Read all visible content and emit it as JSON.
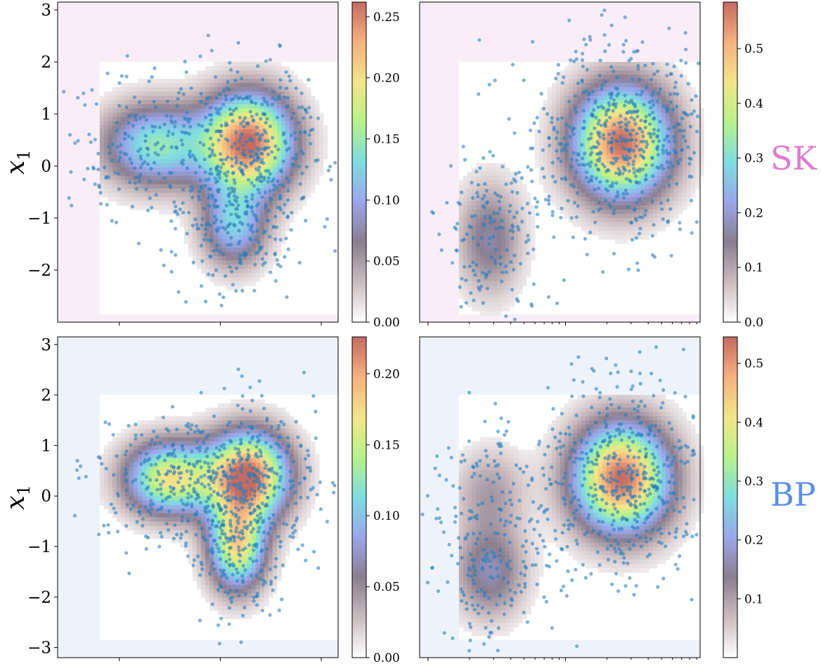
{
  "chart_data": [
    {
      "type": "scatter",
      "description_of_layer": "density heatmap with sample scatter overlay",
      "row_label": "SK",
      "ylabel": "x_1",
      "ylim": [
        -3,
        3.15
      ],
      "yticks": [
        -2,
        -1,
        0,
        1,
        2,
        3
      ],
      "ytick_labels": [
        "−2",
        "−1",
        "0",
        "1",
        "2",
        "3"
      ],
      "background_color": "#f9eef8",
      "colorbar": {
        "min": 0.0,
        "max": 0.262,
        "ticks": [
          0.0,
          0.05,
          0.1,
          0.15,
          0.2,
          0.25
        ],
        "tick_labels": [
          "0.00",
          "0.05",
          "0.10",
          "0.15",
          "0.20",
          "0.25"
        ]
      },
      "modes": [
        {
          "x": 0.68,
          "y": 0.45,
          "sx": 0.11,
          "sy": 0.65,
          "w": 1.0
        },
        {
          "x": 0.35,
          "y": 0.4,
          "sx": 0.13,
          "sy": 0.55,
          "w": 0.55
        },
        {
          "x": 0.63,
          "y": -1.15,
          "sx": 0.08,
          "sy": 0.55,
          "w": 0.45
        }
      ]
    },
    {
      "type": "scatter",
      "description_of_layer": "density heatmap with sample scatter overlay",
      "ylim": [
        -3,
        3.15
      ],
      "background_color": "#f9eef8",
      "colorbar": {
        "min": 0.0,
        "max": 0.585,
        "ticks": [
          0.0,
          0.1,
          0.2,
          0.3,
          0.4,
          0.5
        ],
        "tick_labels": [
          "0.0",
          "0.1",
          "0.2",
          "0.3",
          "0.4",
          "0.5"
        ]
      },
      "modes": [
        {
          "x": 0.72,
          "y": 0.45,
          "sx": 0.12,
          "sy": 0.75,
          "w": 1.0
        },
        {
          "x": 0.25,
          "y": -1.4,
          "sx": 0.08,
          "sy": 0.75,
          "w": 0.28
        }
      ]
    },
    {
      "type": "scatter",
      "description_of_layer": "density heatmap with sample scatter overlay",
      "row_label": "BP",
      "ylabel": "x_1",
      "ylim": [
        -3.2,
        3.15
      ],
      "yticks": [
        -3,
        -2,
        -1,
        0,
        1,
        2,
        3
      ],
      "ytick_labels": [
        "−3",
        "−2",
        "−1",
        "0",
        "1",
        "2",
        "3"
      ],
      "background_color": "#eef3fb",
      "colorbar": {
        "min": 0.0,
        "max": 0.226,
        "ticks": [
          0.0,
          0.05,
          0.1,
          0.15,
          0.2
        ],
        "tick_labels": [
          "0.00",
          "0.05",
          "0.10",
          "0.15",
          "0.20"
        ]
      },
      "modes": [
        {
          "x": 0.68,
          "y": 0.4,
          "sx": 0.1,
          "sy": 0.6,
          "w": 1.0
        },
        {
          "x": 0.4,
          "y": 0.35,
          "sx": 0.11,
          "sy": 0.5,
          "w": 0.75
        },
        {
          "x": 0.64,
          "y": -1.0,
          "sx": 0.07,
          "sy": 0.6,
          "w": 0.75
        }
      ]
    },
    {
      "type": "scatter",
      "description_of_layer": "density heatmap with sample scatter overlay",
      "ylim": [
        -3.2,
        3.15
      ],
      "background_color": "#eef3fb",
      "colorbar": {
        "min": 0.0,
        "max": 0.545,
        "ticks": [
          0.1,
          0.2,
          0.3,
          0.4,
          0.5
        ],
        "tick_labels": [
          "0.1",
          "0.2",
          "0.3",
          "0.4",
          "0.5"
        ]
      },
      "modes": [
        {
          "x": 0.72,
          "y": 0.35,
          "sx": 0.12,
          "sy": 0.75,
          "w": 1.0
        },
        {
          "x": 0.25,
          "y": -1.5,
          "sx": 0.09,
          "sy": 0.65,
          "w": 0.3
        },
        {
          "x": 0.25,
          "y": 0.1,
          "sx": 0.09,
          "sy": 0.6,
          "w": 0.18
        }
      ]
    }
  ],
  "row_labels": {
    "top": "SK",
    "bottom": "BP"
  },
  "row_label_colors": {
    "top": "#e07bcf",
    "bottom": "#5b8fe6"
  },
  "scatter_color": "#2a7fbd",
  "colormap_stops": [
    "#ffffff",
    "#cbbcbf",
    "#8a7e90",
    "#9aa6ea",
    "#7fdde2",
    "#b7f28a",
    "#f4e58a",
    "#f5b17f",
    "#c56b62"
  ]
}
